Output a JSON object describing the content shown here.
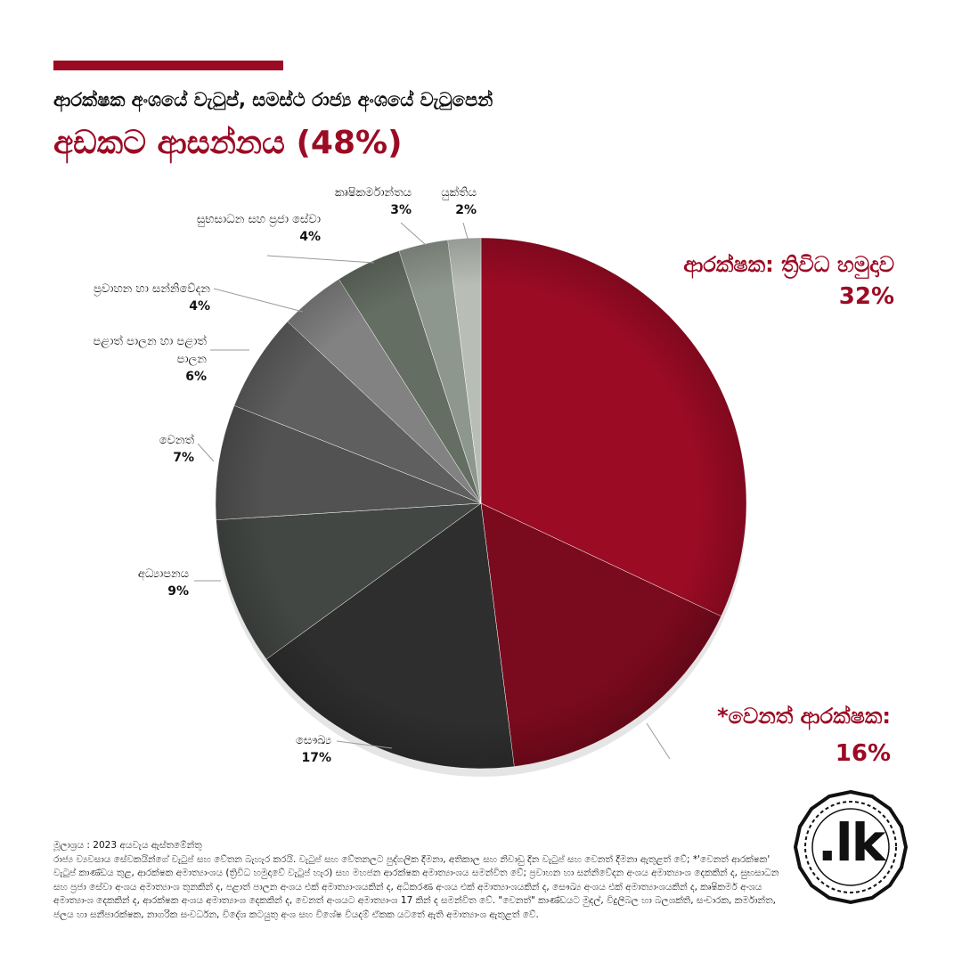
{
  "header": {
    "title_line1": "ආරක්ෂක අංශයේ වැටුප්, සමස්ථ රාජ්‍ය අංශයේ වැටුපෙන්",
    "title_line2": "අඩකට ආසන්නය (48%)"
  },
  "colors": {
    "accent": "#9b0b24",
    "text": "#111111"
  },
  "chart_data": {
    "type": "pie",
    "title": "ආරක්ෂක අංශයේ වැටුප්, සමස්ථ රාජ්‍ය අංශයේ වැටුපෙන් අඩකට ආසන්නය (48%)",
    "unit": "%",
    "direction": "clockwise from top",
    "slices": [
      {
        "label": "ආරක්ෂක: ත්‍රිවිධ හමුදාව",
        "value": 32,
        "display": "32%",
        "color": "#9b0b24"
      },
      {
        "label": "*වෙනත් ආරක්ෂක:",
        "value": 16,
        "display": "16%",
        "color": "#7a0a1d"
      },
      {
        "label": "සෞඛ්‍ය",
        "value": 17,
        "display": "17%",
        "color": "#2e2e2e"
      },
      {
        "label": "අධ්‍යාපනය",
        "value": 9,
        "display": "9%",
        "color": "#434743"
      },
      {
        "label": "වෙනත්",
        "value": 7,
        "display": "7%",
        "color": "#525252"
      },
      {
        "label": "පළාත් පාලන හා පළාත් පාලන",
        "value": 6,
        "display": "6%",
        "color": "#5f5f5f"
      },
      {
        "label": "ප්‍රවාහන හා සන්නිවේදන",
        "value": 4,
        "display": "4%",
        "color": "#828282"
      },
      {
        "label": "සුභසාධන සහ ප්‍රජා සේවා",
        "value": 4,
        "display": "4%",
        "color": "#646e62"
      },
      {
        "label": "කෘෂිකර්මාන්තය",
        "value": 3,
        "display": "3%",
        "color": "#8e978d"
      },
      {
        "label": "යුක්තිය",
        "value": 2,
        "display": "2%",
        "color": "#b8bdb6"
      }
    ]
  },
  "footer": {
    "source": "මූලාශ්‍රය : 2023 අයවැය ඇස්තමේන්තු",
    "notes": "රාජ්‍ය ව්‍යවසාය සේවකයින්ගේ වැටුප් සහ වේතන බැහැර කරයි. වැටුප් සහ වේතනලට පුද්ගලික දීමනා, අතිකාල සහ නිවාඩු දින වැටුප් සහ වෙනත් දීමනා ඇතුළත් වේ; *'වෙනත් ආරක්ෂක' වැටුප් කාණ්ඩය තුළ, ආරක්ෂක අමාත්‍යාංශය (ත්‍රිවිධ හමුදාවේ වැටුප් හැර) සහ මහජන ආරක්ෂක අමාත්‍යාංශය සමන්විත වේ; ප්‍රවාහන හා සන්නිවේදන අංශය අමාත්‍යාංශ දෙකකින් ද, සුභසාධන සහ ප්‍රජා සේවා අංශය අමාත්‍යාංශ තුනකින් ද, පළාත් පාලන අංශය එක් අමාත්‍යාංශයකින් ද, අධිකරණ අංශය එක් අමාත්‍යාංශයකින් ද, සෞඛ්‍ය අංශය එක් අමාත්‍යාංශයකින් ද, කෘෂිකර්ම අංශය අමාත්‍යාංශ දෙකකින් ද, ආරක්ෂක අංශය අමාත්‍යාංශ දෙකකින් ද, වෙනත් අංශයට අමාත්‍යාංශ 17 කින් ද සමන්විත වේ. \"වෙනත්\" කාණ්ඩයට මුදල්, විදුලිබල හා බලශක්ති, සංචාරක, කර්මාන්ත, ජලය හා සනීපාරක්ෂක, නාගරික සංවර්ධන, විදේශ කටයුතු අංශ සහ විශේෂ වියදම් ඒකක යටතේ ඇති අමාත්‍යාංශ ඇතුළත් වේ."
  },
  "logo": {
    "text": ".lk",
    "icon": "lk-logo-badge-icon"
  }
}
